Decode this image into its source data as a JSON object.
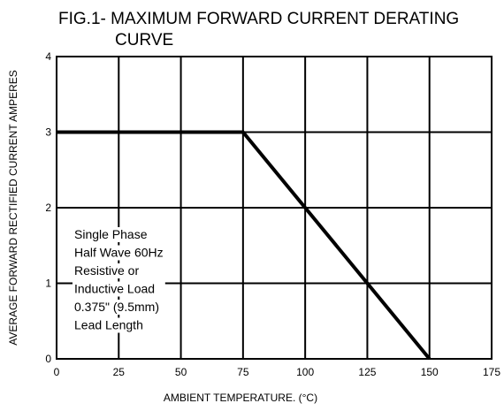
{
  "chart_data": {
    "type": "line",
    "title_line1": "FIG.1- MAXIMUM FORWARD CURRENT DERATING",
    "title_line2": "CURVE",
    "xlabel": "AMBIENT TEMPERATURE. (°C)",
    "ylabel": "AVERAGE FORWARD RECTIFIED CURRENT AMPERES",
    "xlim": [
      0,
      175
    ],
    "ylim": [
      0,
      4
    ],
    "xticks": [
      0,
      25,
      50,
      75,
      100,
      125,
      150,
      175
    ],
    "yticks": [
      0,
      1,
      2,
      3,
      4
    ],
    "grid": true,
    "series": [
      {
        "x": [
          0,
          75,
          150
        ],
        "y": [
          3,
          3,
          0
        ]
      }
    ],
    "annotation": [
      "Single Phase",
      "Half Wave 60Hz",
      "Resistive or",
      "Inductive Load",
      "0.375\" (9.5mm)",
      "Lead Length"
    ]
  }
}
